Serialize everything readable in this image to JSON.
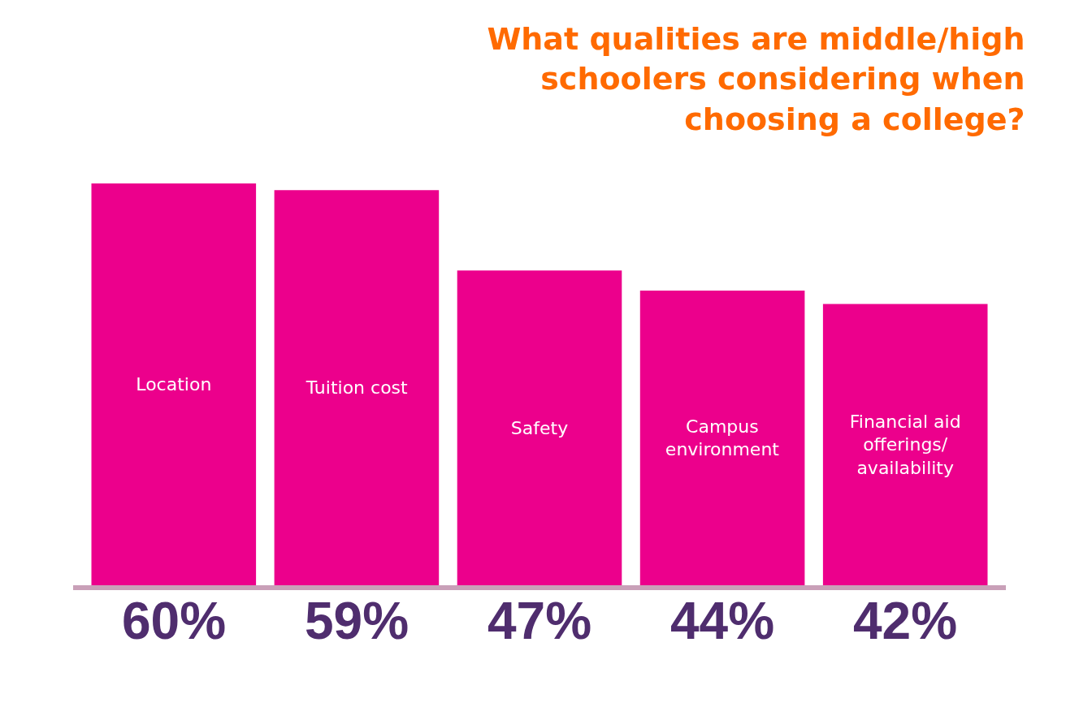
{
  "chart_data": {
    "type": "bar",
    "title": "What qualities are middle/high schoolers considering when choosing a college?",
    "categories": [
      "Location",
      "Tuition cost",
      "Safety",
      "Campus environment",
      "Financial aid offerings/ availability"
    ],
    "values": [
      60,
      59,
      47,
      44,
      42
    ],
    "value_labels": [
      "60%",
      "59%",
      "47%",
      "44%",
      "42%"
    ],
    "color": "#ec008c",
    "tick_labels": false
  }
}
